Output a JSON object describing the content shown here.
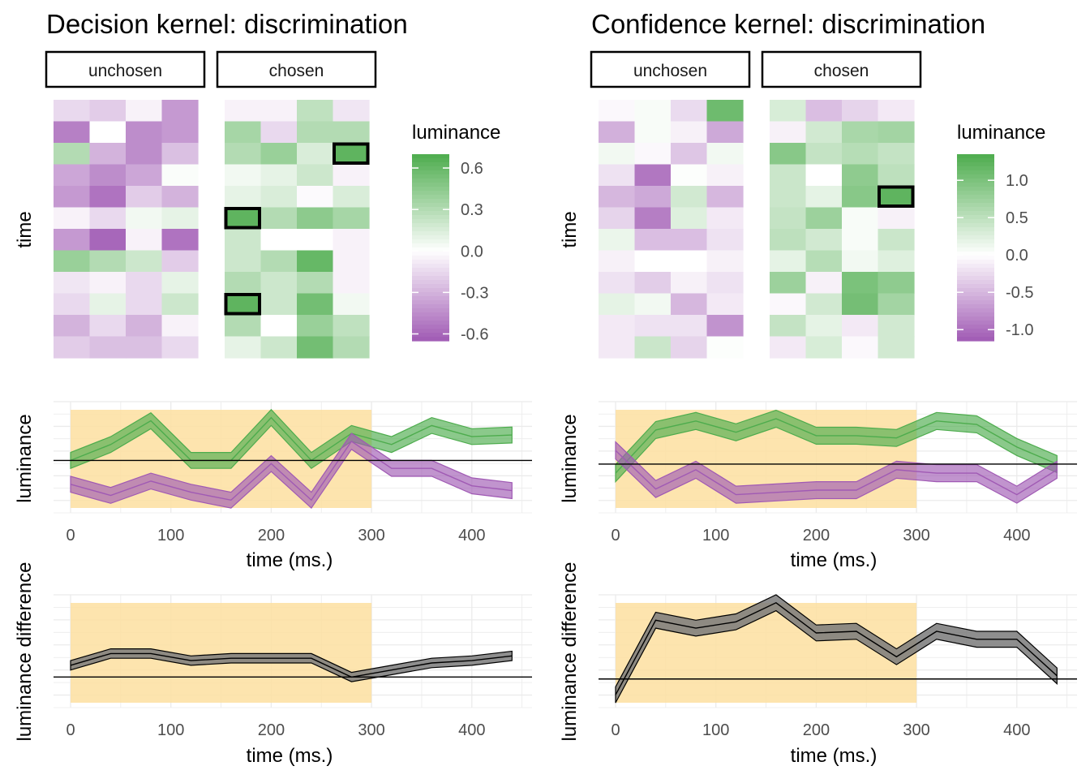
{
  "figure": {
    "colors": {
      "green": "#4DAC4D",
      "purple": "#A05AB4",
      "highlight": "#FDDFA0",
      "grid": "#EBEBEB",
      "axis_text": "#4D4D4D",
      "diff_ribbon": "#7A7A7A",
      "diff_ribbon_overlap": "#7A6A50"
    },
    "legend_title": "luminance"
  },
  "chart_data": [
    {
      "type": "heatmap",
      "panel": "decision-heatmap",
      "title": "Decision kernel: discrimination",
      "facets": [
        "unchosen",
        "chosen"
      ],
      "ylabel": "time",
      "legend": {
        "title": "luminance",
        "ticks": [
          0.6,
          0.3,
          0.0,
          -0.3,
          -0.6
        ],
        "tick_labels": [
          "0.6",
          "0.3",
          "0.0",
          "-0.3",
          "-0.6"
        ],
        "limits": [
          -0.65,
          0.7
        ]
      },
      "unchosen": [
        [
          -0.15,
          -0.2,
          -0.05,
          -0.4
        ],
        [
          -0.5,
          0.0,
          -0.45,
          -0.4
        ],
        [
          0.3,
          -0.3,
          -0.45,
          -0.25
        ],
        [
          -0.35,
          -0.45,
          -0.35,
          0.02
        ],
        [
          -0.4,
          -0.55,
          -0.2,
          -0.3
        ],
        [
          -0.05,
          -0.15,
          0.05,
          0.1
        ],
        [
          -0.4,
          -0.6,
          -0.05,
          -0.55
        ],
        [
          0.4,
          0.3,
          0.2,
          -0.2
        ],
        [
          -0.1,
          -0.05,
          -0.15,
          0.1
        ],
        [
          -0.15,
          0.1,
          -0.15,
          0.2
        ],
        [
          -0.3,
          -0.15,
          -0.3,
          -0.05
        ],
        [
          -0.2,
          -0.25,
          -0.25,
          -0.15
        ]
      ],
      "chosen": [
        [
          -0.05,
          -0.05,
          0.25,
          -0.1
        ],
        [
          0.35,
          -0.15,
          0.3,
          0.3
        ],
        [
          0.3,
          0.4,
          0.15,
          0.65
        ],
        [
          0.05,
          0.1,
          0.2,
          -0.05
        ],
        [
          0.1,
          0.15,
          -0.02,
          0.15
        ],
        [
          0.65,
          0.3,
          0.45,
          0.35
        ],
        [
          0.2,
          0.0,
          0.0,
          -0.05
        ],
        [
          0.2,
          0.3,
          0.6,
          -0.05
        ],
        [
          0.3,
          0.2,
          0.3,
          -0.05
        ],
        [
          0.65,
          0.2,
          0.55,
          0.05
        ],
        [
          0.3,
          0.0,
          0.4,
          0.25
        ],
        [
          0.1,
          0.2,
          0.55,
          0.3
        ]
      ],
      "highlighted_cells": [
        [
          2,
          3
        ],
        [
          5,
          0
        ],
        [
          9,
          0
        ]
      ]
    },
    {
      "type": "heatmap",
      "panel": "confidence-heatmap",
      "title": "Confidence kernel: discrimination",
      "facets": [
        "unchosen",
        "chosen"
      ],
      "ylabel": "time",
      "legend": {
        "title": "luminance",
        "ticks": [
          1.0,
          0.5,
          0.0,
          -0.5,
          -1.0
        ],
        "tick_labels": [
          "1.0",
          "0.5",
          "0.0",
          "-0.5",
          "-1.0"
        ],
        "limits": [
          -1.15,
          1.35
        ]
      },
      "unchosen": [
        [
          -0.05,
          0.05,
          -0.25,
          1.1
        ],
        [
          -0.55,
          0.05,
          -0.1,
          -0.6
        ],
        [
          0.1,
          -0.05,
          -0.4,
          0.1
        ],
        [
          -0.2,
          -0.95,
          0.02,
          -0.1
        ],
        [
          -0.5,
          -0.6,
          0.35,
          -0.5
        ],
        [
          -0.3,
          -0.9,
          0.25,
          -0.15
        ],
        [
          0.15,
          -0.45,
          -0.45,
          -0.2
        ],
        [
          -0.1,
          0.0,
          0.0,
          -0.1
        ],
        [
          -0.2,
          -0.35,
          -0.1,
          -0.2
        ],
        [
          0.2,
          0.1,
          -0.5,
          -0.15
        ],
        [
          -0.15,
          -0.2,
          -0.2,
          -0.75
        ],
        [
          -0.15,
          0.4,
          -0.3,
          0.02
        ]
      ],
      "chosen": [
        [
          0.3,
          -0.45,
          -0.3,
          -0.15
        ],
        [
          -0.1,
          0.35,
          0.65,
          0.7
        ],
        [
          0.9,
          0.45,
          0.55,
          0.45
        ],
        [
          0.4,
          0.0,
          0.85,
          0.5
        ],
        [
          0.4,
          0.2,
          0.9,
          1.2
        ],
        [
          0.45,
          0.75,
          0.05,
          -0.1
        ],
        [
          0.5,
          0.35,
          0.05,
          0.4
        ],
        [
          0.2,
          0.55,
          0.1,
          0.25
        ],
        [
          0.75,
          -0.1,
          1.0,
          0.85
        ],
        [
          -0.05,
          0.35,
          1.05,
          0.7
        ],
        [
          0.45,
          0.2,
          -0.15,
          0.35
        ],
        [
          -0.15,
          0.3,
          -0.05,
          0.35
        ]
      ],
      "highlighted_cells": [
        [
          4,
          3
        ]
      ]
    },
    {
      "type": "line",
      "panel": "decision-lines",
      "xlabel": "time (ms.)",
      "ylabel": "luminance",
      "x": [
        0,
        40,
        80,
        120,
        160,
        200,
        240,
        280,
        320,
        360,
        400,
        440
      ],
      "xticks": [
        0,
        100,
        200,
        300,
        400
      ],
      "xlim": [
        -17,
        460
      ],
      "ylim": [
        -0.33,
        0.37
      ],
      "highlight_range": [
        0,
        300
      ],
      "hline": 0,
      "series": [
        {
          "name": "chosen",
          "color": "green",
          "values": [
            0.0,
            0.1,
            0.25,
            0.0,
            0.0,
            0.27,
            0.0,
            0.17,
            0.1,
            0.22,
            0.15,
            0.16
          ],
          "se": 0.05
        },
        {
          "name": "unchosen",
          "color": "purple",
          "values": [
            -0.15,
            -0.22,
            -0.13,
            -0.2,
            -0.25,
            -0.02,
            -0.25,
            0.12,
            -0.05,
            -0.05,
            -0.16,
            -0.19
          ],
          "se": 0.05
        }
      ]
    },
    {
      "type": "line",
      "panel": "confidence-lines",
      "xlabel": "time (ms.)",
      "ylabel": "luminance",
      "x": [
        0,
        40,
        80,
        120,
        160,
        200,
        240,
        280,
        320,
        360,
        400,
        440
      ],
      "xticks": [
        0,
        100,
        200,
        300,
        400
      ],
      "xlim": [
        -17,
        460
      ],
      "ylim": [
        -0.43,
        0.55
      ],
      "highlight_range": [
        0,
        300
      ],
      "hline": 0,
      "series": [
        {
          "name": "chosen",
          "color": "green",
          "values": [
            -0.08,
            0.3,
            0.38,
            0.28,
            0.4,
            0.25,
            0.25,
            0.23,
            0.38,
            0.35,
            0.15,
            0.0
          ],
          "se": 0.075
        },
        {
          "name": "unchosen",
          "color": "purple",
          "values": [
            0.12,
            -0.22,
            -0.05,
            -0.27,
            -0.25,
            -0.23,
            -0.23,
            -0.05,
            -0.08,
            -0.08,
            -0.27,
            -0.05
          ],
          "se": 0.075
        }
      ]
    },
    {
      "type": "line",
      "panel": "decision-difference",
      "xlabel": "time (ms.)",
      "ylabel": "luminance difference",
      "x": [
        0,
        40,
        80,
        120,
        160,
        200,
        240,
        280,
        320,
        360,
        400,
        440
      ],
      "xticks": [
        0,
        100,
        200,
        300,
        400
      ],
      "xlim": [
        -17,
        460
      ],
      "ylim": [
        -0.13,
        0.35
      ],
      "highlight_range": [
        0,
        300
      ],
      "hline": 0,
      "series": [
        {
          "name": "difference",
          "color": "black",
          "values": [
            0.05,
            0.1,
            0.1,
            0.07,
            0.08,
            0.08,
            0.08,
            0.0,
            0.03,
            0.06,
            0.07,
            0.09
          ],
          "se": 0.02
        }
      ]
    },
    {
      "type": "line",
      "panel": "confidence-difference",
      "xlabel": "time (ms.)",
      "ylabel": "luminance difference",
      "x": [
        0,
        40,
        80,
        120,
        160,
        200,
        240,
        280,
        320,
        360,
        400,
        440
      ],
      "xticks": [
        0,
        100,
        200,
        300,
        400
      ],
      "xlim": [
        -17,
        460
      ],
      "ylim": [
        -0.18,
        0.53
      ],
      "highlight_range": [
        0,
        300
      ],
      "hline": 0,
      "series": [
        {
          "name": "difference",
          "color": "black",
          "values": [
            -0.1,
            0.37,
            0.32,
            0.36,
            0.48,
            0.29,
            0.3,
            0.14,
            0.3,
            0.25,
            0.25,
            0.02
          ],
          "se": 0.05
        }
      ]
    }
  ]
}
